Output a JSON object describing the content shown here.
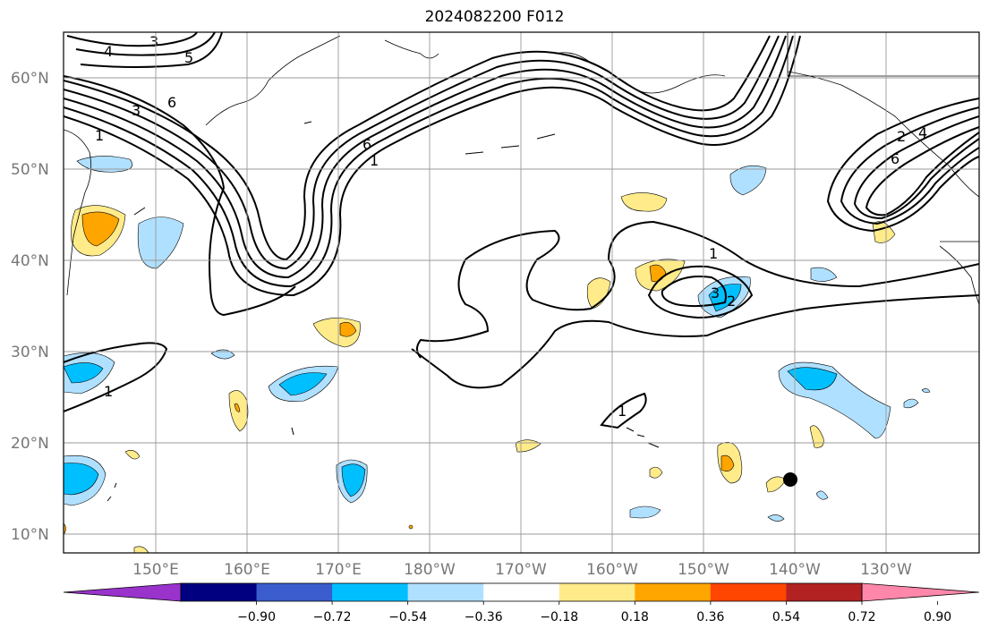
{
  "title": "2024082200 F012",
  "lat_labels": [
    "60°N",
    "50°N",
    "40°N",
    "30°N",
    "20°N",
    "10°N"
  ],
  "lon_labels": [
    "150°E",
    "160°E",
    "170°E",
    "180°W",
    "170°W",
    "160°W",
    "150°W",
    "140°W",
    "130°W"
  ],
  "colorbar": {
    "ticks": [
      "−0.90",
      "−0.72",
      "−0.54",
      "−0.36",
      "−0.18",
      "0.18",
      "0.36",
      "0.54",
      "0.72",
      "0.90"
    ],
    "colors": [
      "#9933cc",
      "#000080",
      "#3a5ccc",
      "#00bfff",
      "#b0e0ff",
      "#ffffff",
      "#ffeb8a",
      "#ffa500",
      "#ff4500",
      "#b22222",
      "#ff88aa"
    ]
  },
  "contour_labels": {
    "top_left_4": "4",
    "top_left_3": "3",
    "top_left_5": "5",
    "nw_3": "3",
    "nw_6": "6",
    "nw_1": "1",
    "aleut_6": "6",
    "aleut_1": "1",
    "mid_1": "1",
    "mid_2": "2",
    "mid_3": "3",
    "sw_1": "1",
    "hawaii_1": "1",
    "e_6": "6",
    "e_2": "2",
    "e_4": "4"
  },
  "marker": "black-dot"
}
